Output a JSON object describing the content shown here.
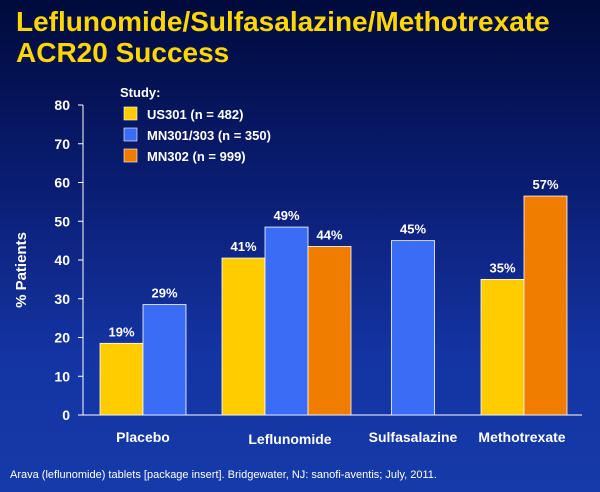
{
  "title_line1": "Leflunomide/Sulfasalazine/Methotrexate",
  "title_line2": "ACR20 Success",
  "footnote": "Arava (leflunomide) tablets [package insert]. Bridgewater, NJ: sanofi-aventis; July, 2011.",
  "colors": {
    "title": "#ffd700",
    "background_top": "#000a3c",
    "background_bottom": "#163aa9"
  },
  "chart_data": {
    "type": "bar",
    "title": "",
    "xlabel": "",
    "ylabel": "% Patients",
    "ylim": [
      0,
      80
    ],
    "yticks": [
      0,
      10,
      20,
      30,
      40,
      50,
      60,
      70,
      80
    ],
    "grid": false,
    "legend_title": "Study:",
    "legend_position": "top-left",
    "categories": [
      "Placebo",
      "Leflunomide",
      "Sulfasalazine",
      "Methotrexate"
    ],
    "series": [
      {
        "name": "US301 (n = 482)",
        "color": "#ffcc00",
        "values": [
          18.5,
          40.5,
          null,
          35
        ],
        "labels": [
          "19%",
          "41%",
          null,
          "35%"
        ]
      },
      {
        "name": "MN301/303 (n = 350)",
        "color": "#3b6cf5",
        "values": [
          28.5,
          48.5,
          45,
          null
        ],
        "labels": [
          "29%",
          "49%",
          "45%",
          null
        ]
      },
      {
        "name": "MN302 (n = 999)",
        "color": "#f07c00",
        "values": [
          null,
          43.5,
          null,
          56.5
        ],
        "labels": [
          null,
          "44%",
          null,
          "57%"
        ]
      }
    ]
  }
}
